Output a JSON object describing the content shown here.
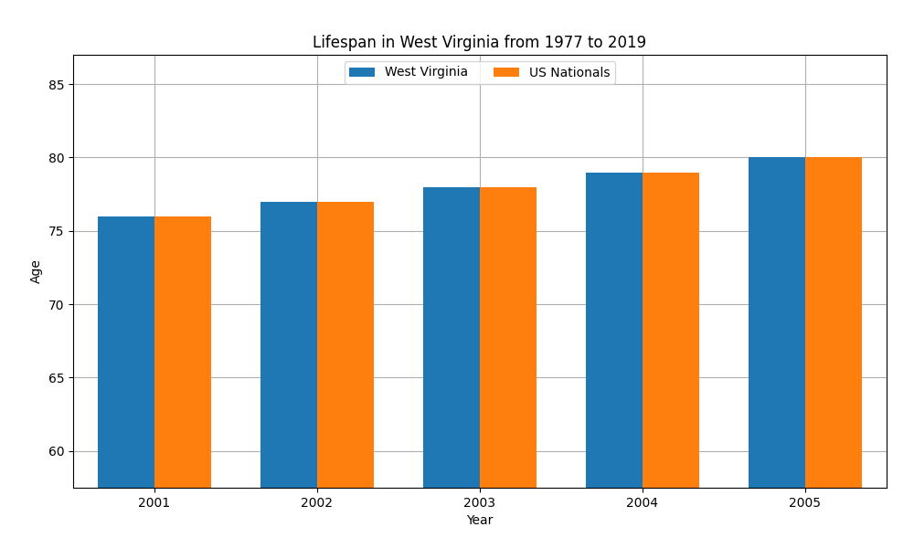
{
  "chart_data": {
    "type": "bar",
    "title": "Lifespan in West Virginia from 1977 to 2019",
    "x_label": "Year",
    "y_label": "Age",
    "categories": [
      "2001",
      "2002",
      "2003",
      "2004",
      "2005"
    ],
    "series": [
      {
        "name": "West Virginia",
        "values": [
          76,
          77,
          78,
          79,
          80
        ]
      },
      {
        "name": "US Nationals",
        "values": [
          76,
          77,
          78,
          79,
          80
        ]
      }
    ],
    "ylim": [
      57.5,
      87
    ],
    "yticks": [
      60,
      65,
      70,
      75,
      80,
      85
    ],
    "grid": true,
    "legend": "upper center"
  }
}
